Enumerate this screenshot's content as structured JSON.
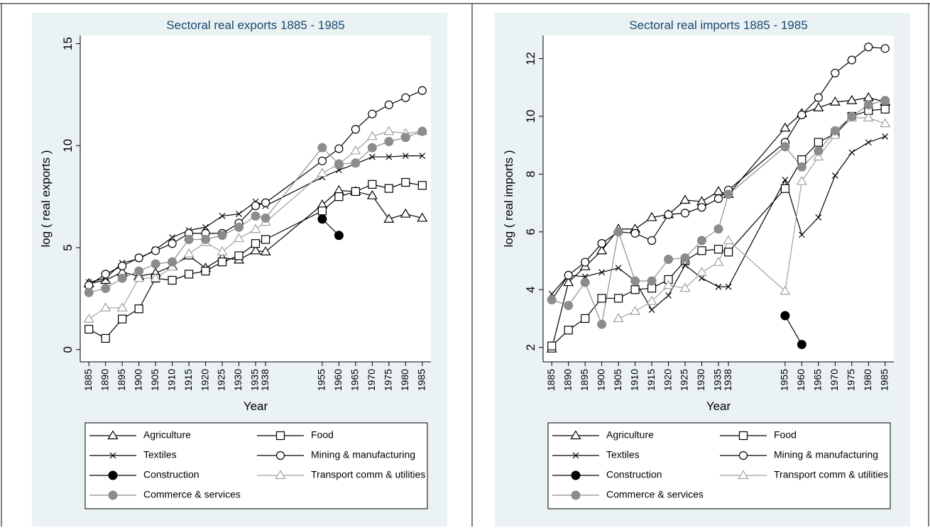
{
  "chart_data": [
    {
      "type": "line",
      "title": "Sectoral real exports 1885 - 1985",
      "x_label": "Year",
      "y_label": "log ( real exports )",
      "x": [
        1885,
        1890,
        1895,
        1900,
        1905,
        1910,
        1915,
        1920,
        1925,
        1930,
        1935,
        1938,
        1955,
        1960,
        1965,
        1970,
        1975,
        1980,
        1985
      ],
      "xlim": [
        1882.4,
        1987.6
      ],
      "xticks": [
        1885,
        1890,
        1895,
        1900,
        1905,
        1910,
        1915,
        1920,
        1925,
        1930,
        1935,
        1938,
        1955,
        1960,
        1965,
        1970,
        1975,
        1980,
        1985
      ],
      "ylim": [
        -0.6,
        15.4
      ],
      "yticks": [
        0,
        5,
        10,
        15
      ],
      "grid": false,
      "legend": "bottom",
      "series": [
        {
          "name": "Agriculture",
          "color": "#000000",
          "marker": "hollow-triangle",
          "values": [
            3.24,
            3.4,
            3.8,
            3.6,
            3.75,
            4.1,
            4.6,
            4.0,
            4.5,
            4.4,
            4.85,
            4.8,
            7.1,
            7.8,
            7.75,
            7.55,
            6.4,
            6.65,
            6.45
          ]
        },
        {
          "name": "Food",
          "color": "#000000",
          "marker": "hollow-square",
          "values": [
            1.0,
            0.55,
            1.5,
            2.0,
            3.5,
            3.4,
            3.7,
            3.85,
            4.3,
            4.6,
            5.2,
            5.4,
            6.8,
            7.5,
            7.75,
            8.1,
            7.9,
            8.2,
            8.05
          ]
        },
        {
          "name": "Textiles",
          "color": "#000000",
          "marker": "x",
          "values": [
            3.3,
            3.5,
            4.25,
            4.45,
            4.9,
            5.5,
            5.85,
            6.0,
            6.55,
            6.65,
            7.25,
            7.05,
            8.45,
            8.8,
            9.1,
            9.45,
            9.45,
            9.5,
            9.5
          ]
        },
        {
          "name": "Mining & manufacturing",
          "color": "#000000",
          "marker": "hollow-circle",
          "values": [
            3.15,
            3.7,
            4.1,
            4.5,
            4.85,
            5.2,
            5.7,
            5.7,
            5.7,
            6.2,
            7.05,
            7.2,
            9.25,
            9.85,
            10.8,
            11.55,
            12.0,
            12.35,
            12.7
          ]
        },
        {
          "name": "Construction",
          "color": "#000000",
          "marker": "filled-circle",
          "values": [
            null,
            null,
            null,
            null,
            null,
            null,
            null,
            null,
            null,
            null,
            null,
            null,
            6.4,
            5.6,
            null,
            null,
            null,
            null,
            null
          ]
        },
        {
          "name": "Transport comm & utilities",
          "color": "#a0a0a0",
          "marker": "hollow-triangle",
          "values": [
            1.5,
            2.05,
            2.05,
            3.5,
            3.5,
            4.05,
            4.7,
            5.25,
            4.8,
            5.45,
            5.9,
            6.25,
            8.65,
            9.1,
            9.75,
            10.45,
            10.7,
            10.6,
            10.7
          ]
        },
        {
          "name": "Commerce & services",
          "color": "#8c8c8c",
          "marker": "filled-circle",
          "values": [
            2.8,
            3.0,
            3.5,
            3.85,
            4.2,
            4.3,
            5.4,
            5.4,
            5.6,
            6.0,
            6.55,
            6.45,
            9.9,
            9.1,
            9.15,
            9.9,
            10.2,
            10.4,
            10.7
          ]
        }
      ]
    },
    {
      "type": "line",
      "title": "Sectoral real imports 1885 - 1985",
      "x_label": "Year",
      "y_label": "log ( real imports )",
      "x": [
        1885,
        1890,
        1895,
        1900,
        1905,
        1910,
        1915,
        1920,
        1925,
        1930,
        1935,
        1938,
        1955,
        1960,
        1965,
        1970,
        1975,
        1980,
        1985
      ],
      "xlim": [
        1882.4,
        1987.6
      ],
      "xticks": [
        1885,
        1890,
        1895,
        1900,
        1905,
        1910,
        1915,
        1920,
        1925,
        1930,
        1935,
        1938,
        1955,
        1960,
        1965,
        1970,
        1975,
        1980,
        1985
      ],
      "ylim": [
        1.5,
        12.8
      ],
      "yticks": [
        2,
        4,
        6,
        8,
        10,
        12
      ],
      "grid": false,
      "legend": "bottom",
      "series": [
        {
          "name": "Agriculture",
          "color": "#000000",
          "marker": "hollow-triangle",
          "values": [
            1.95,
            4.25,
            4.8,
            5.35,
            6.1,
            6.1,
            6.5,
            6.6,
            7.1,
            7.05,
            7.4,
            7.3,
            9.6,
            10.1,
            10.3,
            10.5,
            10.55,
            10.65,
            10.5
          ]
        },
        {
          "name": "Food",
          "color": "#000000",
          "marker": "hollow-square",
          "values": [
            2.05,
            2.6,
            3.0,
            3.7,
            3.7,
            4.0,
            4.05,
            4.35,
            5.0,
            5.35,
            5.4,
            5.3,
            7.5,
            8.5,
            9.1,
            9.4,
            10.0,
            10.2,
            10.25
          ]
        },
        {
          "name": "Textiles",
          "color": "#000000",
          "marker": "x",
          "values": [
            3.85,
            4.5,
            4.45,
            4.6,
            4.75,
            4.3,
            3.3,
            3.8,
            4.85,
            4.4,
            4.1,
            4.1,
            7.8,
            5.9,
            6.5,
            7.95,
            8.75,
            9.1,
            9.3
          ]
        },
        {
          "name": "Mining & manufacturing",
          "color": "#000000",
          "marker": "hollow-circle",
          "values": [
            3.65,
            4.5,
            4.95,
            5.6,
            6.0,
            5.95,
            5.7,
            6.6,
            6.65,
            6.85,
            7.15,
            7.45,
            9.1,
            10.05,
            10.65,
            11.5,
            11.95,
            12.4,
            12.35
          ]
        },
        {
          "name": "Construction",
          "color": "#000000",
          "marker": "filled-circle",
          "values": [
            null,
            null,
            null,
            null,
            null,
            null,
            null,
            null,
            null,
            null,
            null,
            null,
            3.1,
            2.1,
            null,
            null,
            null,
            null,
            null
          ]
        },
        {
          "name": "Transport comm & utilities",
          "color": "#a0a0a0",
          "marker": "hollow-triangle",
          "values": [
            null,
            null,
            null,
            null,
            3.0,
            3.25,
            3.6,
            4.15,
            4.05,
            4.6,
            4.95,
            5.7,
            3.95,
            7.75,
            8.6,
            9.35,
            9.95,
            9.95,
            9.75
          ]
        },
        {
          "name": "Commerce & services",
          "color": "#8c8c8c",
          "marker": "filled-circle",
          "values": [
            3.65,
            3.45,
            4.25,
            2.8,
            6.0,
            4.3,
            4.3,
            5.05,
            5.1,
            5.7,
            6.1,
            7.3,
            8.95,
            8.25,
            8.8,
            9.5,
            10.0,
            10.4,
            10.55
          ]
        }
      ]
    }
  ]
}
